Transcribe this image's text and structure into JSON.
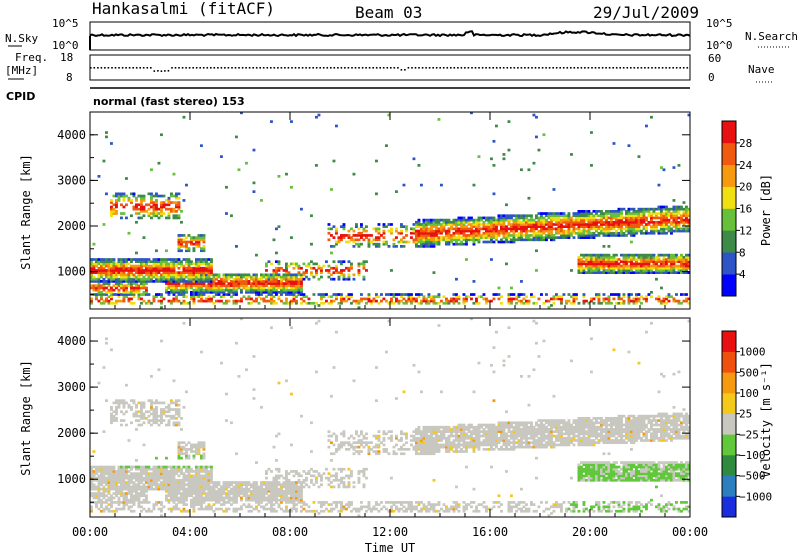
{
  "header": {
    "station": "Hankasalmi (fitACF)",
    "beam": "Beam 03",
    "date": "29/Jul/2009"
  },
  "panel_labels": {
    "nsky": "N.Sky",
    "nsearch": "N.Search",
    "freq": "Freq.",
    "mhz": "[MHz]",
    "nave": "Nave",
    "cpid": "CPID",
    "cpid_text": "normal (fast stereo) 153",
    "nsky_ticks": [
      "10^5",
      "10^0"
    ],
    "nsearch_ticks": [
      "10^5",
      "10^0"
    ],
    "freq_ticks": [
      "18",
      "8"
    ],
    "nave_ticks": [
      "60",
      "0"
    ]
  },
  "chart_data": [
    {
      "type": "heatmap",
      "name": "power",
      "ylabel": "Slant Range [km]",
      "yticks": [
        "1000",
        "2000",
        "3000",
        "4000"
      ],
      "ylim": [
        180,
        4500
      ],
      "xlim": [
        0,
        24
      ],
      "xticks": [
        "00:00",
        "04:00",
        "08:00",
        "12:00",
        "16:00",
        "20:00",
        "00:00"
      ],
      "colorbar": {
        "label": "Power [dB]",
        "ticks": [
          "4",
          "8",
          "12",
          "16",
          "20",
          "24",
          "28"
        ],
        "colors": [
          "#0000ff",
          "#2e55c8",
          "#3e8a48",
          "#66c03a",
          "#f0e012",
          "#f59a0f",
          "#f05a0e",
          "#e81010"
        ]
      }
    },
    {
      "type": "heatmap",
      "name": "velocity",
      "xlabel": "Time UT",
      "ylabel": "Slant Range [km]",
      "yticks": [
        "1000",
        "2000",
        "3000",
        "4000"
      ],
      "ylim": [
        180,
        4500
      ],
      "xlim": [
        0,
        24
      ],
      "xticks": [
        "00:00",
        "04:00",
        "08:00",
        "12:00",
        "16:00",
        "20:00",
        "00:00"
      ],
      "colorbar": {
        "label": "Velocity [m s⁻¹]",
        "ticks": [
          "1000",
          "500",
          "100",
          "25",
          "−25",
          "−100",
          "−500",
          "−1000"
        ],
        "colors": [
          "#1a2ee0",
          "#2b7fbf",
          "#2e8a3e",
          "#60c83a",
          "#c8c8c0",
          "#f5c81c",
          "#f59a0f",
          "#f0500e",
          "#e81010"
        ]
      }
    }
  ]
}
